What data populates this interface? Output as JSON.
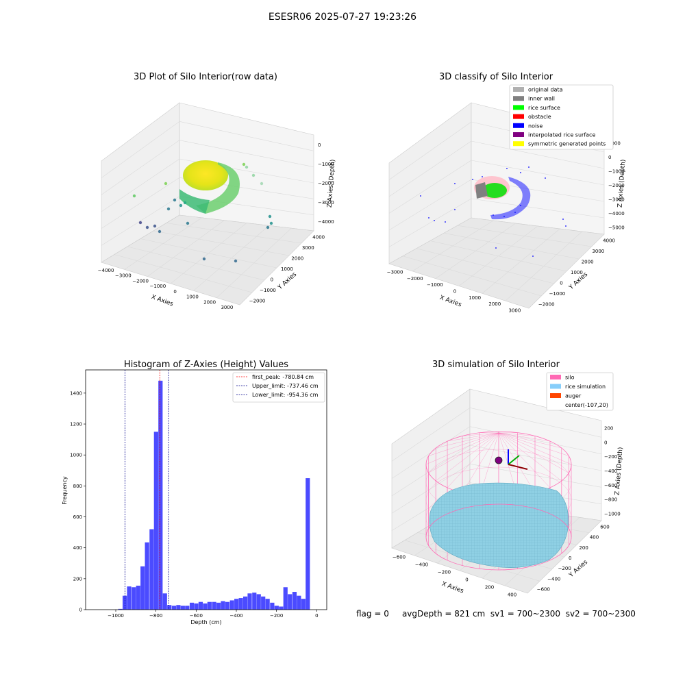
{
  "suptitle": "ESESR06 2025-07-27 19:23:26",
  "status_line": {
    "flag": "flag = 0",
    "avg_depth": "avgDepth = 821 cm",
    "sv1": "sv1 = 700~2300",
    "sv2": "sv2 = 700~2300"
  },
  "chart_data": [
    {
      "id": "raw3d",
      "type": "scatter",
      "projection": "3d",
      "title": "3D Plot of Silo Interior(row data)",
      "xlabel": "X Axies",
      "ylabel": "Y Axies",
      "zlabel": "Z Axies (Depth)",
      "x_ticks": [
        "−4000",
        "−3000",
        "−2000",
        "−1000",
        "0",
        "1000",
        "2000",
        "3000"
      ],
      "y_ticks": [
        "−2000",
        "−1000",
        "0",
        "1000",
        "2000",
        "3000",
        "4000"
      ],
      "z_ticks": [
        "−4000",
        "−3000",
        "−2000",
        "−1000",
        "0"
      ],
      "colormap": "viridis"
    },
    {
      "id": "classify3d",
      "type": "scatter",
      "projection": "3d",
      "title": "3D classify of Silo Interior",
      "xlabel": "X Axies",
      "ylabel": "Y Axies",
      "zlabel": "Z Axies (Depth)",
      "x_ticks": [
        "−3000",
        "−2000",
        "−1000",
        "0",
        "1000",
        "2000",
        "3000"
      ],
      "y_ticks": [
        "−2000",
        "−1000",
        "0",
        "1000",
        "2000",
        "3000",
        "4000"
      ],
      "z_ticks": [
        "−5000",
        "−4000",
        "−3000",
        "−2000",
        "−1000",
        "0",
        "1000"
      ],
      "legend": [
        {
          "label": "original data",
          "color": "#b0b0b0"
        },
        {
          "label": "inner wall",
          "color": "#808080"
        },
        {
          "label": "rice surface",
          "color": "#00ff00"
        },
        {
          "label": "obstacle",
          "color": "#ff0000"
        },
        {
          "label": "noise",
          "color": "#0000ff"
        },
        {
          "label": "interpolated rice surface",
          "color": "#800080"
        },
        {
          "label": "symmetric generated points",
          "color": "#ffff00"
        }
      ],
      "legend_placement": "upper right"
    },
    {
      "id": "hist",
      "type": "bar",
      "title": "Histogram of Z-Axies (Height) Values",
      "xlabel": "Depth (cm)",
      "ylabel": "Frequency",
      "xlim": [
        -1150,
        50
      ],
      "ylim": [
        0,
        1550
      ],
      "x_ticks": [
        -1000,
        -800,
        -600,
        -400,
        -200,
        0
      ],
      "x_tick_labels": [
        "−1000",
        "−800",
        "−600",
        "−400",
        "−200",
        "0"
      ],
      "y_ticks": [
        0,
        200,
        400,
        600,
        800,
        1000,
        1200,
        1400
      ],
      "grid": false,
      "bar_color": "#4b4bff",
      "bin_width": 22.2,
      "bins_start": [
        -988,
        -966,
        -944,
        -921,
        -899,
        -877,
        -855,
        -832,
        -810,
        -788,
        -766,
        -744,
        -721,
        -699,
        -677,
        -655,
        -632,
        -610,
        -588,
        -566,
        -544,
        -521,
        -499,
        -477,
        -455,
        -432,
        -410,
        -388,
        -366,
        -344,
        -321,
        -299,
        -277,
        -255,
        -232,
        -210,
        -188,
        -166,
        -144,
        -121,
        -99,
        -77,
        -55,
        -32,
        -10
      ],
      "values": [
        5,
        90,
        150,
        145,
        155,
        280,
        435,
        520,
        1150,
        1480,
        105,
        30,
        25,
        30,
        25,
        25,
        45,
        40,
        50,
        40,
        50,
        50,
        45,
        55,
        50,
        60,
        70,
        75,
        85,
        105,
        110,
        100,
        85,
        70,
        45,
        25,
        20,
        145,
        100,
        115,
        90,
        70,
        850,
        0,
        0
      ],
      "reference_lines": [
        {
          "label": "first_peak: -780.84 cm",
          "x": -780.84,
          "color": "#ff0000"
        },
        {
          "label": "Upper_limit: -737.46 cm",
          "x": -737.46,
          "color": "#00008b"
        },
        {
          "label": "Lower_limit: -954.36 cm",
          "x": -954.36,
          "color": "#00008b"
        }
      ],
      "legend_placement": "upper right"
    },
    {
      "id": "sim3d",
      "type": "surface",
      "projection": "3d",
      "title": "3D simulation of Silo Interior",
      "xlabel": "X Axies",
      "ylabel": "Y Axies",
      "zlabel": "Z Axies (Depth)",
      "x_ticks": [
        "−600",
        "−400",
        "−200",
        "0",
        "200",
        "400"
      ],
      "y_ticks": [
        "−600",
        "−400",
        "−200",
        "0",
        "200",
        "400",
        "600"
      ],
      "z_ticks": [
        "−1000",
        "−800",
        "−600",
        "−400",
        "−200",
        "0",
        "200"
      ],
      "legend": [
        {
          "label": "silo",
          "color": "#ff69b4"
        },
        {
          "label": "rice simulation",
          "color": "#87cefa"
        },
        {
          "label": "auger",
          "color": "#ff4500"
        },
        {
          "label": "center(-107,20)",
          "color": ""
        }
      ],
      "legend_placement": "upper right"
    }
  ]
}
